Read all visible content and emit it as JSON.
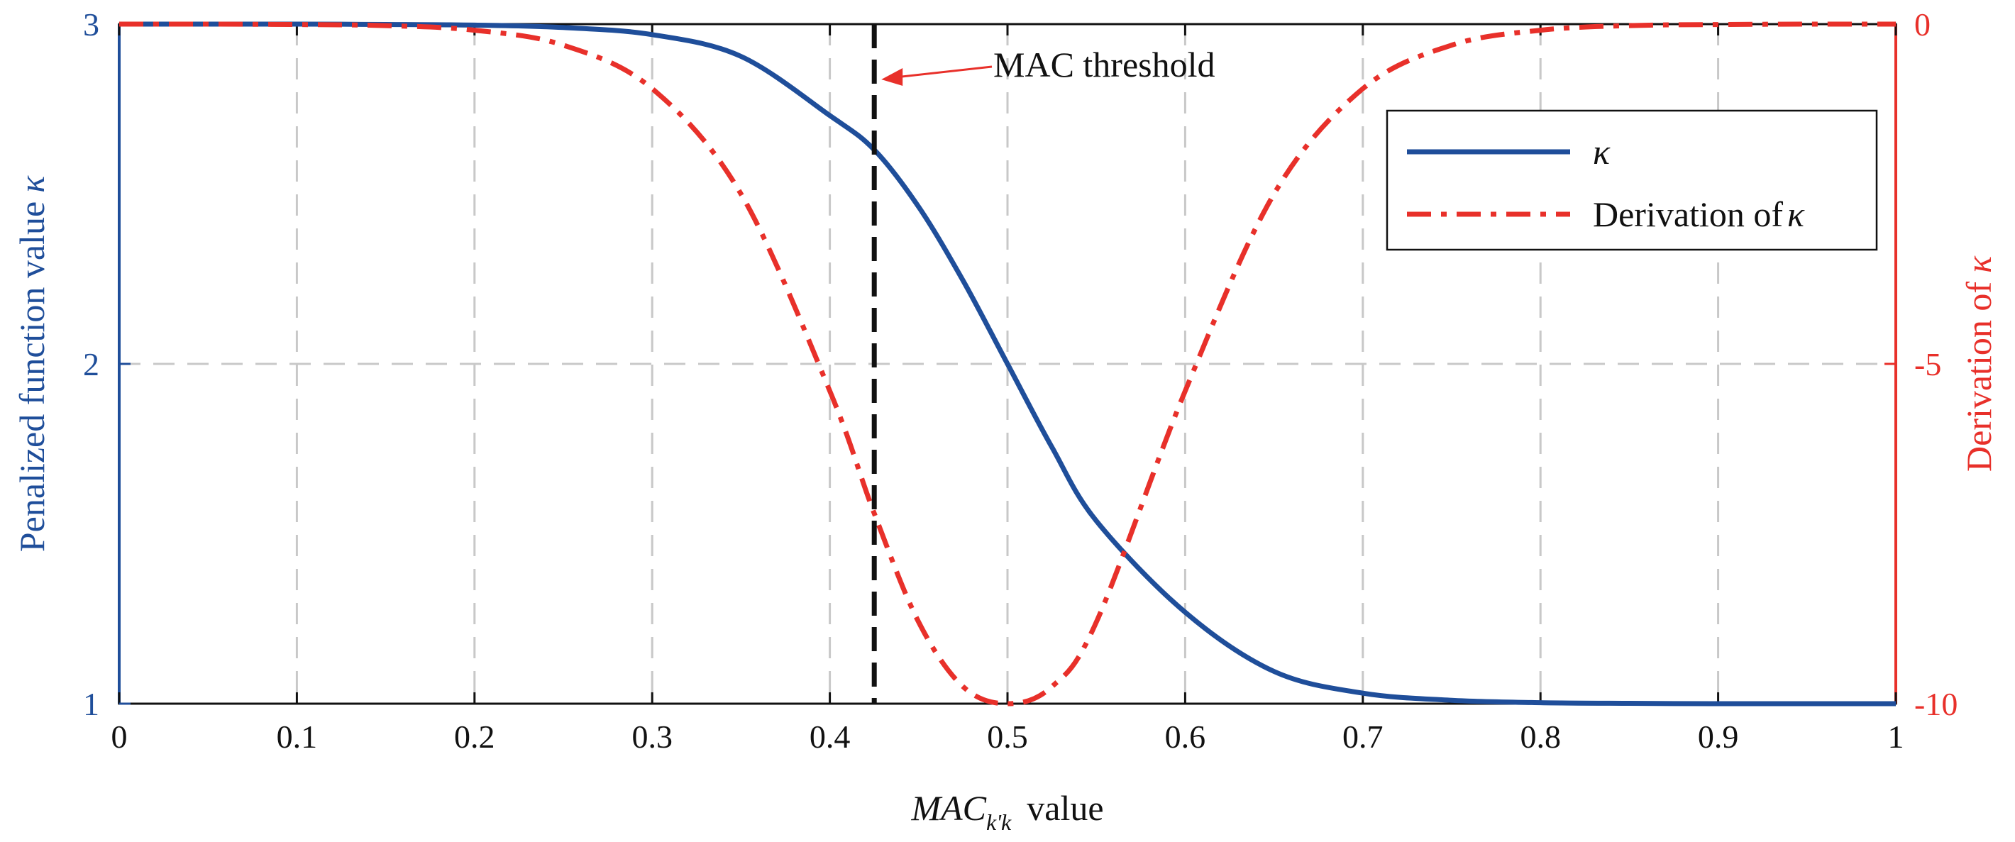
{
  "chart_data": {
    "type": "line",
    "x": [
      0,
      0.05,
      0.1,
      0.15,
      0.2,
      0.25,
      0.3,
      0.35,
      0.4,
      0.425,
      0.45,
      0.475,
      0.5,
      0.525,
      0.55,
      0.6,
      0.65,
      0.7,
      0.75,
      0.8,
      0.85,
      0.9,
      0.95,
      1.0
    ],
    "series": [
      {
        "name": "κ",
        "axis": "left",
        "color": "#1f4e9a",
        "style": "solid",
        "values": [
          3.0,
          3.0,
          3.0,
          2.999,
          2.997,
          2.99,
          2.969,
          2.905,
          2.731,
          2.63,
          2.462,
          2.245,
          2.0,
          1.755,
          1.538,
          1.269,
          1.095,
          1.031,
          1.01,
          1.003,
          1.001,
          1.0,
          1.0,
          1.0
        ]
      },
      {
        "name": "Derivation of κ",
        "axis": "right",
        "color": "#e8302a",
        "style": "dashdot",
        "values": [
          0.0,
          0.0,
          -0.006,
          -0.022,
          -0.09,
          -0.31,
          -0.95,
          -2.5,
          -5.4,
          -7.2,
          -8.8,
          -9.75,
          -10.0,
          -9.75,
          -8.8,
          -5.4,
          -2.5,
          -0.95,
          -0.31,
          -0.09,
          -0.022,
          -0.006,
          0.0,
          0.0
        ]
      }
    ],
    "xlabel_main": "MAC",
    "xlabel_sub": "k'k",
    "xlabel_suffix": "value",
    "ylabel_left": "Penalized function value",
    "ylabel_left_symbol": "κ",
    "ylabel_right": "Derivation of",
    "ylabel_right_symbol": "κ",
    "xlim": [
      0,
      1
    ],
    "ylim_left": [
      1,
      3
    ],
    "ylim_right": [
      -10,
      0
    ],
    "x_ticks": [
      "0",
      "0.1",
      "0.2",
      "0.3",
      "0.4",
      "0.5",
      "0.6",
      "0.7",
      "0.8",
      "0.9",
      "1"
    ],
    "y_left_ticks": [
      1,
      2,
      3
    ],
    "y_right_ticks": [
      -10,
      -5,
      0
    ],
    "y_right_tick_labels": [
      "-10",
      "-5",
      "0"
    ],
    "grid": true,
    "legend_position": "top-right",
    "legend": [
      {
        "label": "κ",
        "symbol_only": true
      },
      {
        "label": "Derivation of",
        "symbol": "κ"
      }
    ],
    "annotation": {
      "text": "MAC threshold",
      "x": 0.425
    },
    "colors": {
      "left_axis": "#1f4e9a",
      "right_axis": "#e8302a",
      "threshold": "#111111",
      "grid": "#c8c8c8"
    }
  }
}
